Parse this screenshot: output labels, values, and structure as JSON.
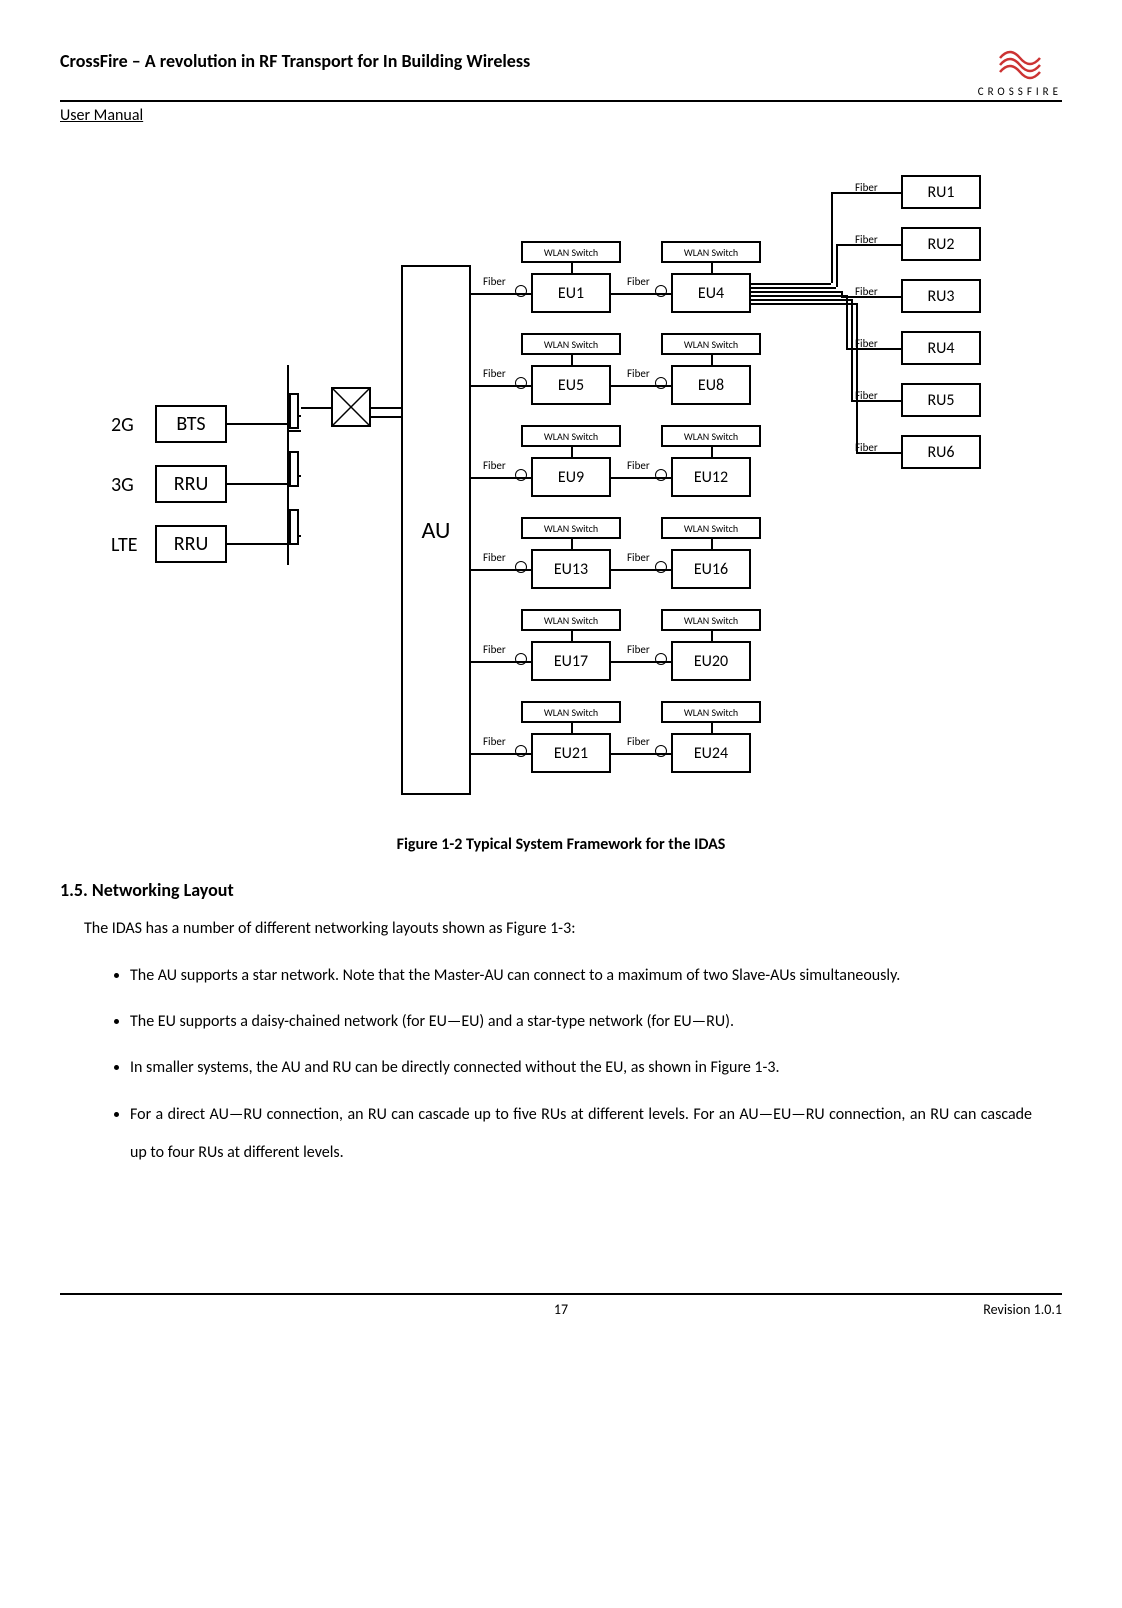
{
  "header": {
    "title": "CrossFire – A revolution in RF Transport for In Building Wireless",
    "subtitle": "User Manual",
    "logo_text": "CROSSFIRE"
  },
  "diagram": {
    "left_net": [
      {
        "label": "2G",
        "box": "BTS"
      },
      {
        "label": "3G",
        "box": "RRU"
      },
      {
        "label": "LTE",
        "box": "RRU"
      }
    ],
    "au_label": "AU",
    "eu_rows": [
      {
        "left": "EU1",
        "right": "EU4"
      },
      {
        "left": "EU5",
        "right": "EU8"
      },
      {
        "left": "EU9",
        "right": "EU12"
      },
      {
        "left": "EU13",
        "right": "EU16"
      },
      {
        "left": "EU17",
        "right": "EU20"
      },
      {
        "left": "EU21",
        "right": "EU24"
      }
    ],
    "wlan_label": "WLAN Switch",
    "fiber_label": "Fiber",
    "ru_units": [
      "RU1",
      "RU2",
      "RU3",
      "RU4",
      "RU5",
      "RU6"
    ]
  },
  "figure_caption": "Figure 1-2 Typical System Framework for the IDAS",
  "section_heading": "1.5. Networking Layout",
  "intro_para": "The IDAS has a number of different networking layouts shown as Figure 1-3:",
  "bullets": [
    "The AU supports a star network. Note that the Master-AU can connect to a maximum of two Slave-AUs simultaneously.",
    "The EU supports a daisy-chained network (for EU—EU) and a star-type network (for EU—RU).",
    "In smaller systems, the AU and RU can be directly connected without the EU, as shown in Figure 1-3.",
    "For a direct AU—RU connection, an RU can cascade up to five RUs at different levels. For an AU—EU—RU connection, an RU can cascade up to four RUs at different levels."
  ],
  "footer": {
    "page": "17",
    "revision": "Revision 1.0.1"
  },
  "colors": {
    "text": "#000000",
    "background": "#ffffff",
    "logo_red": "#cc3333"
  }
}
